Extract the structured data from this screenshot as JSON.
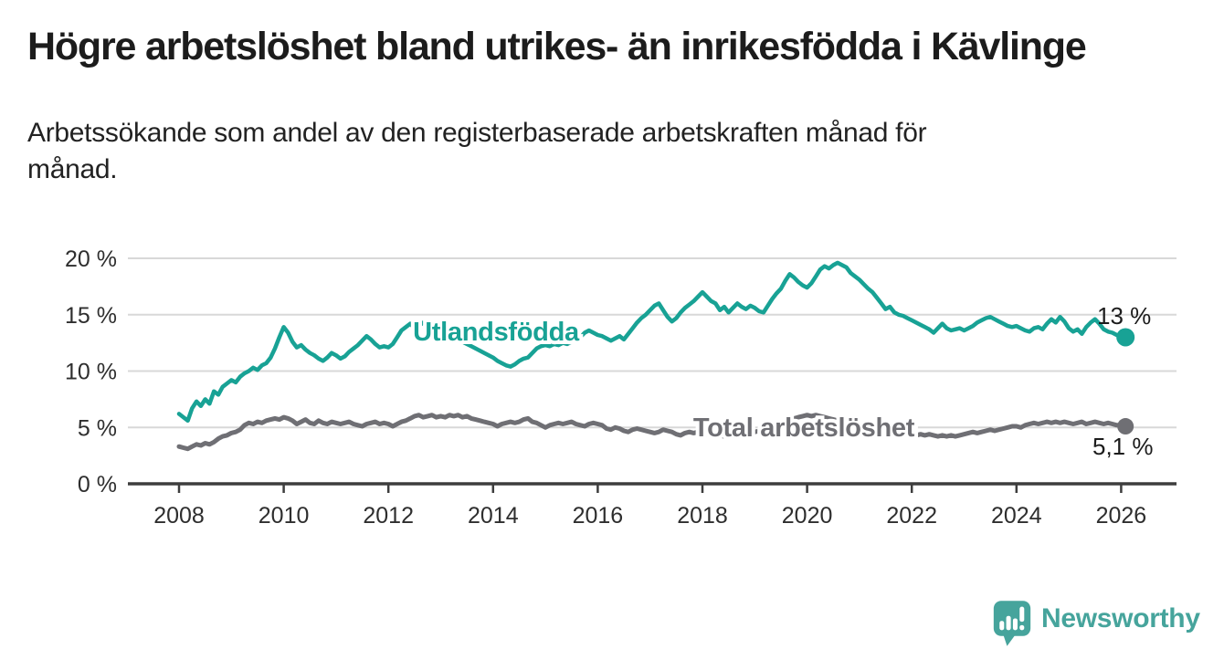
{
  "header": {
    "title": "Högre arbetslöshet bland utrikes- än inrikesfödda i Kävlinge",
    "subtitle": "Arbetssökande som andel av den registerbaserade arbetskraften månad för månad.",
    "subtitle_lines": [
      "Arbetssökande som andel av den registerbaserade arbetskraften månad för",
      "månad."
    ]
  },
  "colors": {
    "foreign_born_line": "#18a295",
    "total_line": "#6f6f74",
    "grid": "#d8d8d8",
    "axis": "#3d3d3d",
    "text": "#1c1c1c",
    "tick_text": "#2e2e2e",
    "label_halo": "#ffffff",
    "logo_teal": "#46a49c"
  },
  "chart_data": {
    "type": "line",
    "unit": "%",
    "frequency": "monthly",
    "x_start": "2008-01",
    "x_end": "2026-02",
    "xlim": [
      2007.0,
      2027.2
    ],
    "ylim": [
      0,
      21
    ],
    "grid": "horizontal",
    "legend_position": "inline-labels",
    "y_ticks": [
      {
        "value": 0,
        "label": "0 %"
      },
      {
        "value": 5,
        "label": "5 %"
      },
      {
        "value": 10,
        "label": "10 %"
      },
      {
        "value": 15,
        "label": "15 %"
      },
      {
        "value": 20,
        "label": "20 %"
      }
    ],
    "x_ticks": [
      {
        "year": 2008,
        "label": "2008"
      },
      {
        "year": 2010,
        "label": "2010"
      },
      {
        "year": 2012,
        "label": "2012"
      },
      {
        "year": 2014,
        "label": "2014"
      },
      {
        "year": 2016,
        "label": "2016"
      },
      {
        "year": 2018,
        "label": "2018"
      },
      {
        "year": 2020,
        "label": "2020"
      },
      {
        "year": 2022,
        "label": "2022"
      },
      {
        "year": 2024,
        "label": "2024"
      },
      {
        "year": 2026,
        "label": "2026"
      }
    ],
    "series": [
      {
        "name": "Utlandsfödda",
        "inline_label": "Utlandsfödda",
        "end_label": "13 %",
        "last_value": 13.0,
        "color": "#18a295",
        "line_width": 4.5,
        "dot_radius": 10,
        "values": [
          6.2,
          5.9,
          5.6,
          6.7,
          7.3,
          6.9,
          7.5,
          7.1,
          8.2,
          7.9,
          8.6,
          8.9,
          9.2,
          9.0,
          9.5,
          9.8,
          10.0,
          10.3,
          10.1,
          10.5,
          10.7,
          11.2,
          12.0,
          13.0,
          13.9,
          13.4,
          12.6,
          12.1,
          12.3,
          11.9,
          11.6,
          11.4,
          11.1,
          10.9,
          11.2,
          11.6,
          11.4,
          11.1,
          11.3,
          11.7,
          12.0,
          12.3,
          12.7,
          13.1,
          12.8,
          12.4,
          12.1,
          12.2,
          12.1,
          12.4,
          13.0,
          13.6,
          13.9,
          14.2,
          13.8,
          14.0,
          14.3,
          14.1,
          14.4,
          14.2,
          14.0,
          13.8,
          13.5,
          13.2,
          12.9,
          12.6,
          12.4,
          12.2,
          12.0,
          11.8,
          11.6,
          11.4,
          11.2,
          10.9,
          10.7,
          10.5,
          10.4,
          10.6,
          10.9,
          11.1,
          11.2,
          11.6,
          12.0,
          12.2,
          12.3,
          12.2,
          12.4,
          12.3,
          12.5,
          12.4,
          12.6,
          12.8,
          13.0,
          13.4,
          13.6,
          13.4,
          13.2,
          13.1,
          12.9,
          12.7,
          12.9,
          13.1,
          12.8,
          13.3,
          13.8,
          14.3,
          14.7,
          15.0,
          15.4,
          15.8,
          16.0,
          15.4,
          14.8,
          14.4,
          14.7,
          15.2,
          15.6,
          15.9,
          16.2,
          16.6,
          17.0,
          16.6,
          16.2,
          16.0,
          15.4,
          15.7,
          15.2,
          15.6,
          16.0,
          15.7,
          15.5,
          15.8,
          15.6,
          15.3,
          15.2,
          15.8,
          16.4,
          16.9,
          17.3,
          18.0,
          18.6,
          18.3,
          17.9,
          17.6,
          17.4,
          17.8,
          18.4,
          19.0,
          19.3,
          19.1,
          19.4,
          19.6,
          19.4,
          19.2,
          18.7,
          18.4,
          18.1,
          17.7,
          17.3,
          17.0,
          16.5,
          16.0,
          15.5,
          15.7,
          15.2,
          15.0,
          14.9,
          14.7,
          14.5,
          14.3,
          14.1,
          13.9,
          13.7,
          13.4,
          13.8,
          14.2,
          13.8,
          13.6,
          13.7,
          13.8,
          13.6,
          13.8,
          14.0,
          14.3,
          14.5,
          14.7,
          14.8,
          14.6,
          14.4,
          14.2,
          14.0,
          13.9,
          14.0,
          13.8,
          13.6,
          13.5,
          13.8,
          13.9,
          13.7,
          14.2,
          14.6,
          14.3,
          14.8,
          14.4,
          13.8,
          13.5,
          13.7,
          13.3,
          13.9,
          14.3,
          14.6,
          14.2,
          13.7,
          13.5,
          13.4,
          13.2,
          13.1,
          13.0
        ]
      },
      {
        "name": "Total arbetslöshet",
        "inline_label": "Total arbetslöshet",
        "end_label": "5,1 %",
        "last_value": 5.1,
        "color": "#6f6f74",
        "line_width": 5,
        "dot_radius": 9,
        "values": [
          3.3,
          3.2,
          3.1,
          3.3,
          3.5,
          3.4,
          3.6,
          3.5,
          3.7,
          4.0,
          4.2,
          4.3,
          4.5,
          4.6,
          4.8,
          5.2,
          5.4,
          5.3,
          5.5,
          5.4,
          5.6,
          5.7,
          5.8,
          5.7,
          5.9,
          5.8,
          5.6,
          5.3,
          5.5,
          5.7,
          5.4,
          5.3,
          5.6,
          5.4,
          5.3,
          5.5,
          5.4,
          5.3,
          5.4,
          5.5,
          5.3,
          5.2,
          5.1,
          5.3,
          5.4,
          5.5,
          5.3,
          5.4,
          5.3,
          5.1,
          5.3,
          5.5,
          5.6,
          5.8,
          6.0,
          6.1,
          5.9,
          6.0,
          6.1,
          5.9,
          6.0,
          5.9,
          6.1,
          6.0,
          6.1,
          5.9,
          6.0,
          5.8,
          5.7,
          5.6,
          5.5,
          5.4,
          5.3,
          5.1,
          5.3,
          5.4,
          5.5,
          5.4,
          5.5,
          5.7,
          5.8,
          5.5,
          5.4,
          5.2,
          5.0,
          5.2,
          5.3,
          5.4,
          5.3,
          5.4,
          5.5,
          5.3,
          5.2,
          5.1,
          5.3,
          5.4,
          5.3,
          5.2,
          4.9,
          4.8,
          5.0,
          4.9,
          4.7,
          4.6,
          4.8,
          4.9,
          4.8,
          4.7,
          4.6,
          4.5,
          4.6,
          4.8,
          4.7,
          4.6,
          4.4,
          4.3,
          4.5,
          4.6,
          4.5,
          4.6,
          4.5,
          4.4,
          4.3,
          4.4,
          4.3,
          4.2,
          4.3,
          4.4,
          4.3,
          4.4,
          4.5,
          4.4,
          4.6,
          4.7,
          4.8,
          4.9,
          5.0,
          5.1,
          5.2,
          5.4,
          5.6,
          5.8,
          5.9,
          6.0,
          6.1,
          6.0,
          6.1,
          6.0,
          5.9,
          5.8,
          5.7,
          5.6,
          5.5,
          5.3,
          5.2,
          5.1,
          5.0,
          4.9,
          4.8,
          4.7,
          4.6,
          4.5,
          4.6,
          4.5,
          4.4,
          4.5,
          4.4,
          4.4,
          4.4,
          4.3,
          4.4,
          4.3,
          4.4,
          4.3,
          4.2,
          4.3,
          4.2,
          4.3,
          4.2,
          4.3,
          4.4,
          4.5,
          4.6,
          4.5,
          4.6,
          4.7,
          4.8,
          4.7,
          4.8,
          4.9,
          5.0,
          5.1,
          5.1,
          5.0,
          5.2,
          5.3,
          5.4,
          5.3,
          5.4,
          5.5,
          5.4,
          5.5,
          5.4,
          5.5,
          5.4,
          5.3,
          5.4,
          5.5,
          5.3,
          5.4,
          5.5,
          5.4,
          5.3,
          5.4,
          5.3,
          5.2,
          5.2,
          5.1
        ]
      }
    ]
  },
  "footer": {
    "brand": "Newsworthy",
    "logo_icon": "speech-bubble-with-bar-chart-and-exclamation"
  }
}
